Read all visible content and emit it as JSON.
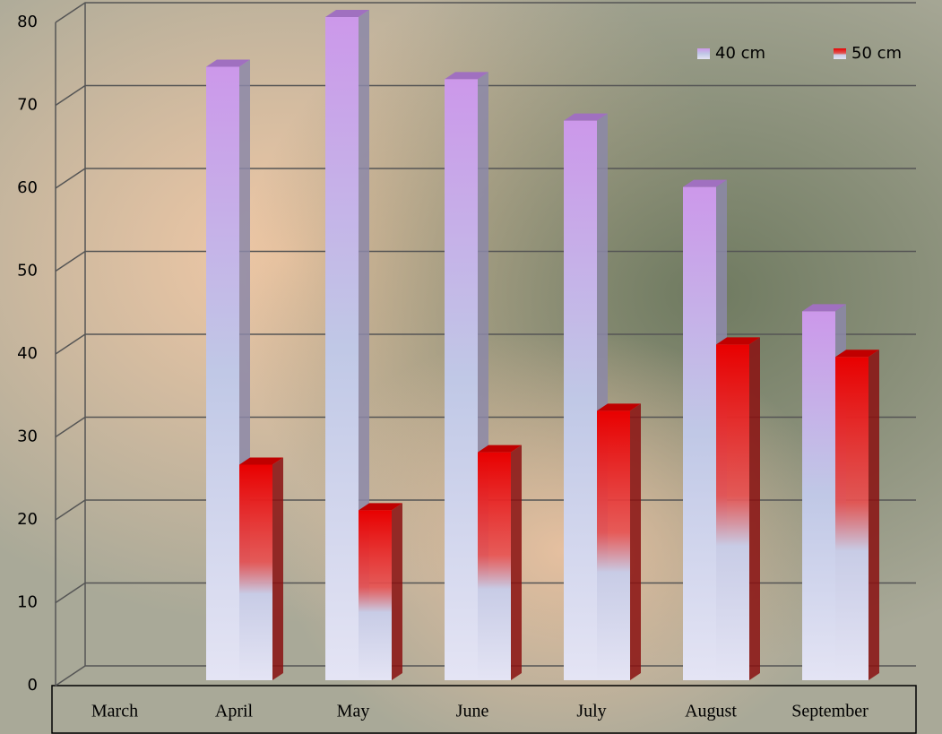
{
  "chart_data": {
    "type": "bar3d",
    "categories": [
      "March",
      "April",
      "May",
      "June",
      "July",
      "August",
      "September"
    ],
    "series": [
      {
        "name": "40 cm",
        "color": "#c896e8",
        "values": [
          null,
          74,
          80,
          72.5,
          67.5,
          59.5,
          44.5
        ]
      },
      {
        "name": "50 cm",
        "color": "#e80000",
        "values": [
          null,
          26,
          20.5,
          27.5,
          32.5,
          40.5,
          39
        ]
      }
    ],
    "ylim": [
      0,
      80
    ],
    "yticks": [
      0,
      10,
      20,
      30,
      40,
      50,
      60,
      70,
      80
    ],
    "grid": true,
    "legend": "top-right"
  }
}
